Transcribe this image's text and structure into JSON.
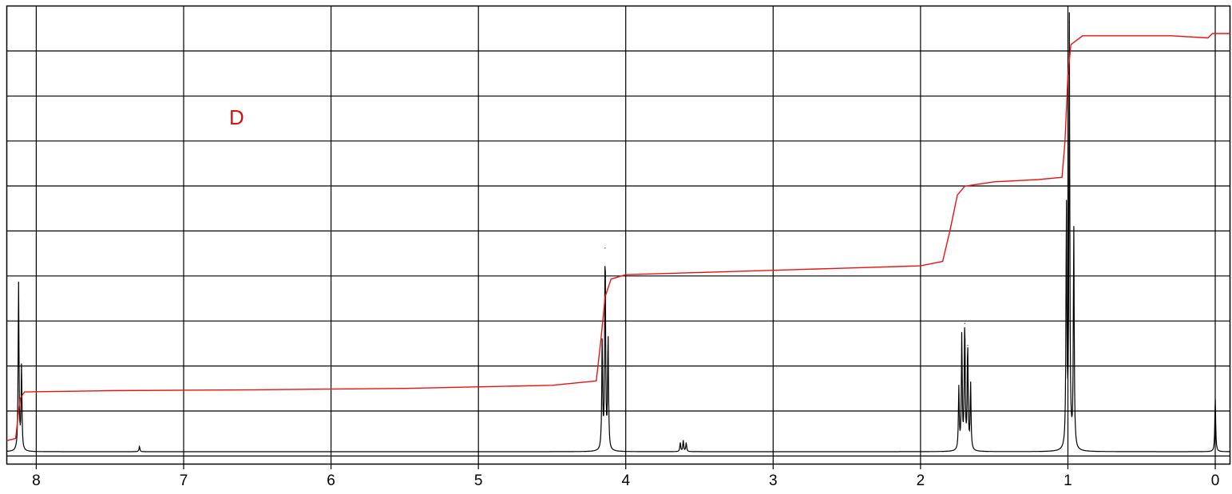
{
  "chart_data": {
    "type": "line",
    "title": "",
    "panel_label": "D",
    "xlabel": "",
    "ylabel": "",
    "x_axis_reversed": true,
    "xlim": [
      8.2,
      -0.1
    ],
    "ylim": [
      0,
      1
    ],
    "x_ticks": [
      8,
      7,
      6,
      5,
      4,
      3,
      2,
      1,
      0
    ],
    "x_tick_labels": [
      "8",
      "7",
      "6",
      "5",
      "4",
      "3",
      "2",
      "1",
      "0"
    ],
    "grid": true,
    "horizontal_grid_lines": 10,
    "legend": "none",
    "colors": {
      "spectrum": "#000000",
      "integral": "#ee1111",
      "grid": "#000000",
      "panel_label": "#dd1111"
    },
    "series": [
      {
        "kind": "spectrum",
        "peaks": [
          {
            "shift": 8.12,
            "height": 0.38
          },
          {
            "shift": 8.1,
            "height": 0.19
          },
          {
            "shift": 7.3,
            "height": 0.012
          },
          {
            "shift": 4.16,
            "height": 0.25
          },
          {
            "shift": 4.14,
            "height": 0.46
          },
          {
            "shift": 4.12,
            "height": 0.26
          },
          {
            "shift": 3.63,
            "height": 0.02
          },
          {
            "shift": 3.61,
            "height": 0.025
          },
          {
            "shift": 3.59,
            "height": 0.02
          },
          {
            "shift": 1.74,
            "height": 0.14
          },
          {
            "shift": 1.72,
            "height": 0.26
          },
          {
            "shift": 1.7,
            "height": 0.29
          },
          {
            "shift": 1.68,
            "height": 0.24
          },
          {
            "shift": 1.66,
            "height": 0.15
          },
          {
            "shift": 1.01,
            "height": 0.55
          },
          {
            "shift": 0.99,
            "height": 0.97
          },
          {
            "shift": 0.96,
            "height": 0.5
          },
          {
            "shift": 0.0,
            "height": 0.12
          }
        ]
      },
      {
        "kind": "integral",
        "points": [
          [
            8.2,
            0.025
          ],
          [
            8.14,
            0.03
          ],
          [
            8.11,
            0.12
          ],
          [
            8.08,
            0.135
          ],
          [
            7.5,
            0.138
          ],
          [
            6.5,
            0.14
          ],
          [
            5.5,
            0.143
          ],
          [
            4.5,
            0.15
          ],
          [
            4.2,
            0.16
          ],
          [
            4.17,
            0.25
          ],
          [
            4.14,
            0.35
          ],
          [
            4.1,
            0.39
          ],
          [
            4.0,
            0.4
          ],
          [
            3.5,
            0.405
          ],
          [
            3.0,
            0.41
          ],
          [
            2.5,
            0.415
          ],
          [
            2.0,
            0.42
          ],
          [
            1.85,
            0.43
          ],
          [
            1.8,
            0.5
          ],
          [
            1.75,
            0.58
          ],
          [
            1.7,
            0.6
          ],
          [
            1.5,
            0.61
          ],
          [
            1.2,
            0.615
          ],
          [
            1.04,
            0.62
          ],
          [
            1.02,
            0.7
          ],
          [
            1.0,
            0.85
          ],
          [
            0.98,
            0.92
          ],
          [
            0.9,
            0.94
          ],
          [
            0.6,
            0.94
          ],
          [
            0.3,
            0.94
          ],
          [
            0.05,
            0.935
          ],
          [
            0.02,
            0.945
          ],
          [
            -0.1,
            0.945
          ]
        ]
      }
    ]
  }
}
